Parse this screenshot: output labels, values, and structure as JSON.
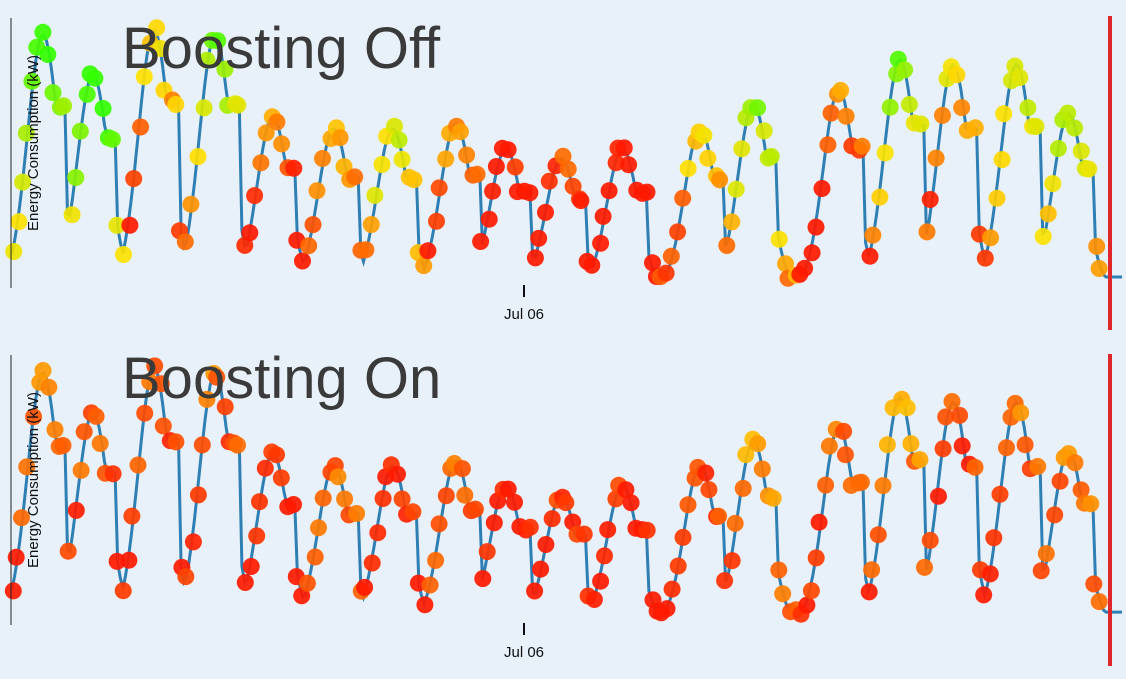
{
  "chart_data": [
    {
      "type": "scatter",
      "title": "Boosting Off",
      "ylabel": "Energy Consumption (kW)",
      "xlabel": "",
      "x_ticks": [
        "Jul 06"
      ],
      "grid": false,
      "colors": {
        "line": "#2f7fb5",
        "marker_low": "#ff1a00",
        "marker_mid": "#ffe100",
        "marker_high": "#33ff00",
        "cursor": "#e0262a"
      },
      "y_range": [
        0,
        1
      ],
      "x_range": [
        0,
        1
      ],
      "wave": {
        "centers": [
          0.028,
          0.073,
          0.128,
          0.183,
          0.235,
          0.29,
          0.343,
          0.4,
          0.445,
          0.495,
          0.55,
          0.62,
          0.668,
          0.745,
          0.8,
          0.848,
          0.905,
          0.952
        ],
        "peaks": [
          0.98,
          0.82,
          1.0,
          0.98,
          0.65,
          0.6,
          0.6,
          0.62,
          0.52,
          0.48,
          0.52,
          0.6,
          0.7,
          0.76,
          0.88,
          0.86,
          0.86,
          0.66
        ]
      },
      "marker_score_levels": [
        0.7,
        0.8,
        0.2,
        0.55,
        0.15,
        0.35,
        0.55,
        0.25,
        0.0,
        0.1,
        0.05,
        0.4,
        0.6,
        0.1,
        0.55,
        0.25,
        0.45,
        0.65
      ]
    },
    {
      "type": "scatter",
      "title": "Boosting On",
      "ylabel": "Energy Consumption (kW)",
      "xlabel": "",
      "x_ticks": [
        "Jul 06"
      ],
      "grid": false,
      "colors": {
        "line": "#2f7fb5",
        "marker_low": "#ff1a00",
        "marker_mid": "#ffe100",
        "marker_high": "#33ff00",
        "cursor": "#e0262a"
      },
      "y_range": [
        0,
        1
      ],
      "x_range": [
        0,
        1
      ],
      "wave": {
        "centers": [
          0.028,
          0.073,
          0.128,
          0.183,
          0.235,
          0.29,
          0.343,
          0.4,
          0.445,
          0.495,
          0.55,
          0.62,
          0.668,
          0.745,
          0.8,
          0.848,
          0.905,
          0.952
        ],
        "peaks": [
          0.98,
          0.82,
          1.0,
          0.98,
          0.65,
          0.6,
          0.6,
          0.62,
          0.52,
          0.48,
          0.52,
          0.6,
          0.7,
          0.76,
          0.88,
          0.86,
          0.86,
          0.66
        ]
      },
      "marker_score_levels": [
        0.15,
        0.1,
        0.05,
        0.12,
        0.04,
        0.18,
        0.02,
        0.2,
        0.0,
        0.05,
        0.02,
        0.1,
        0.25,
        0.08,
        0.22,
        0.05,
        0.18,
        0.2
      ]
    }
  ]
}
